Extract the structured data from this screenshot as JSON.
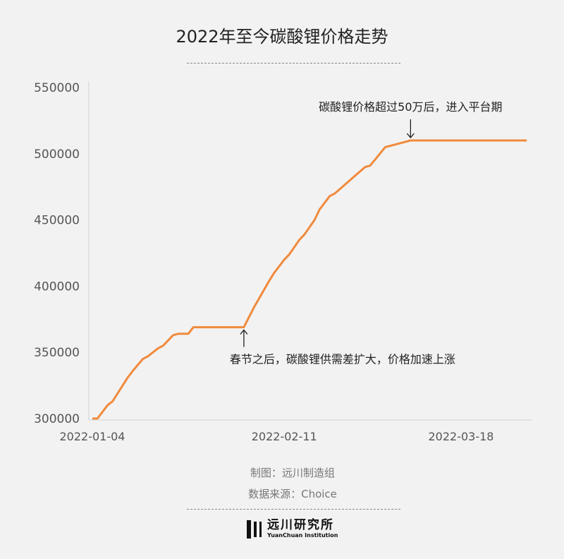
{
  "chart_data": {
    "type": "line",
    "title": "2022年至今碳酸锂价格走势",
    "xlabel": "",
    "ylabel": "",
    "ylim": [
      300000,
      550000
    ],
    "yticks": [
      "550000",
      "500000",
      "450000",
      "400000",
      "350000",
      "300000"
    ],
    "xticks": [
      "2022-01-04",
      "2022-02-11",
      "2022-03-18"
    ],
    "grid": false,
    "line_color": "#f08a3c",
    "series": [
      {
        "points": [
          [
            "2022-01-04",
            300000
          ],
          [
            "2022-01-05",
            300000
          ],
          [
            "2022-01-07",
            310000
          ],
          [
            "2022-01-08",
            313000
          ],
          [
            "2022-01-11",
            331000
          ],
          [
            "2022-01-12",
            336000
          ],
          [
            "2022-01-14",
            345000
          ],
          [
            "2022-01-15",
            347000
          ],
          [
            "2022-01-17",
            353000
          ],
          [
            "2022-01-18",
            355000
          ],
          [
            "2022-01-20",
            363000
          ],
          [
            "2022-01-21",
            364000
          ],
          [
            "2022-01-23",
            364000
          ],
          [
            "2022-01-24",
            369000
          ],
          [
            "2022-02-03",
            369000
          ],
          [
            "2022-02-05",
            384000
          ],
          [
            "2022-02-08",
            404000
          ],
          [
            "2022-02-09",
            410000
          ],
          [
            "2022-02-11",
            420000
          ],
          [
            "2022-02-12",
            424000
          ],
          [
            "2022-02-14",
            435000
          ],
          [
            "2022-02-15",
            439000
          ],
          [
            "2022-02-17",
            450000
          ],
          [
            "2022-02-18",
            458000
          ],
          [
            "2022-02-20",
            468000
          ],
          [
            "2022-02-21",
            470000
          ],
          [
            "2022-02-27",
            490000
          ],
          [
            "2022-02-28",
            491000
          ],
          [
            "2022-03-03",
            505000
          ],
          [
            "2022-03-06",
            508000
          ],
          [
            "2022-03-08",
            510000
          ],
          [
            "2022-03-31",
            510000
          ]
        ]
      }
    ],
    "annotations": [
      {
        "text": "碳酸锂价格超过50万后，进入平台期",
        "date": "2022-03-08",
        "value": 510000,
        "arrow": "down"
      },
      {
        "text": "春节之后，碳酸锂供需差扩大，价格加速上涨",
        "date": "2022-02-03",
        "value": 369000,
        "arrow": "up"
      }
    ]
  },
  "footer": {
    "maker": "制图：远川制造组",
    "source": "数据来源：Choice",
    "logo_cn": "远川研究所",
    "logo_en": "YuanChuan Institution"
  }
}
